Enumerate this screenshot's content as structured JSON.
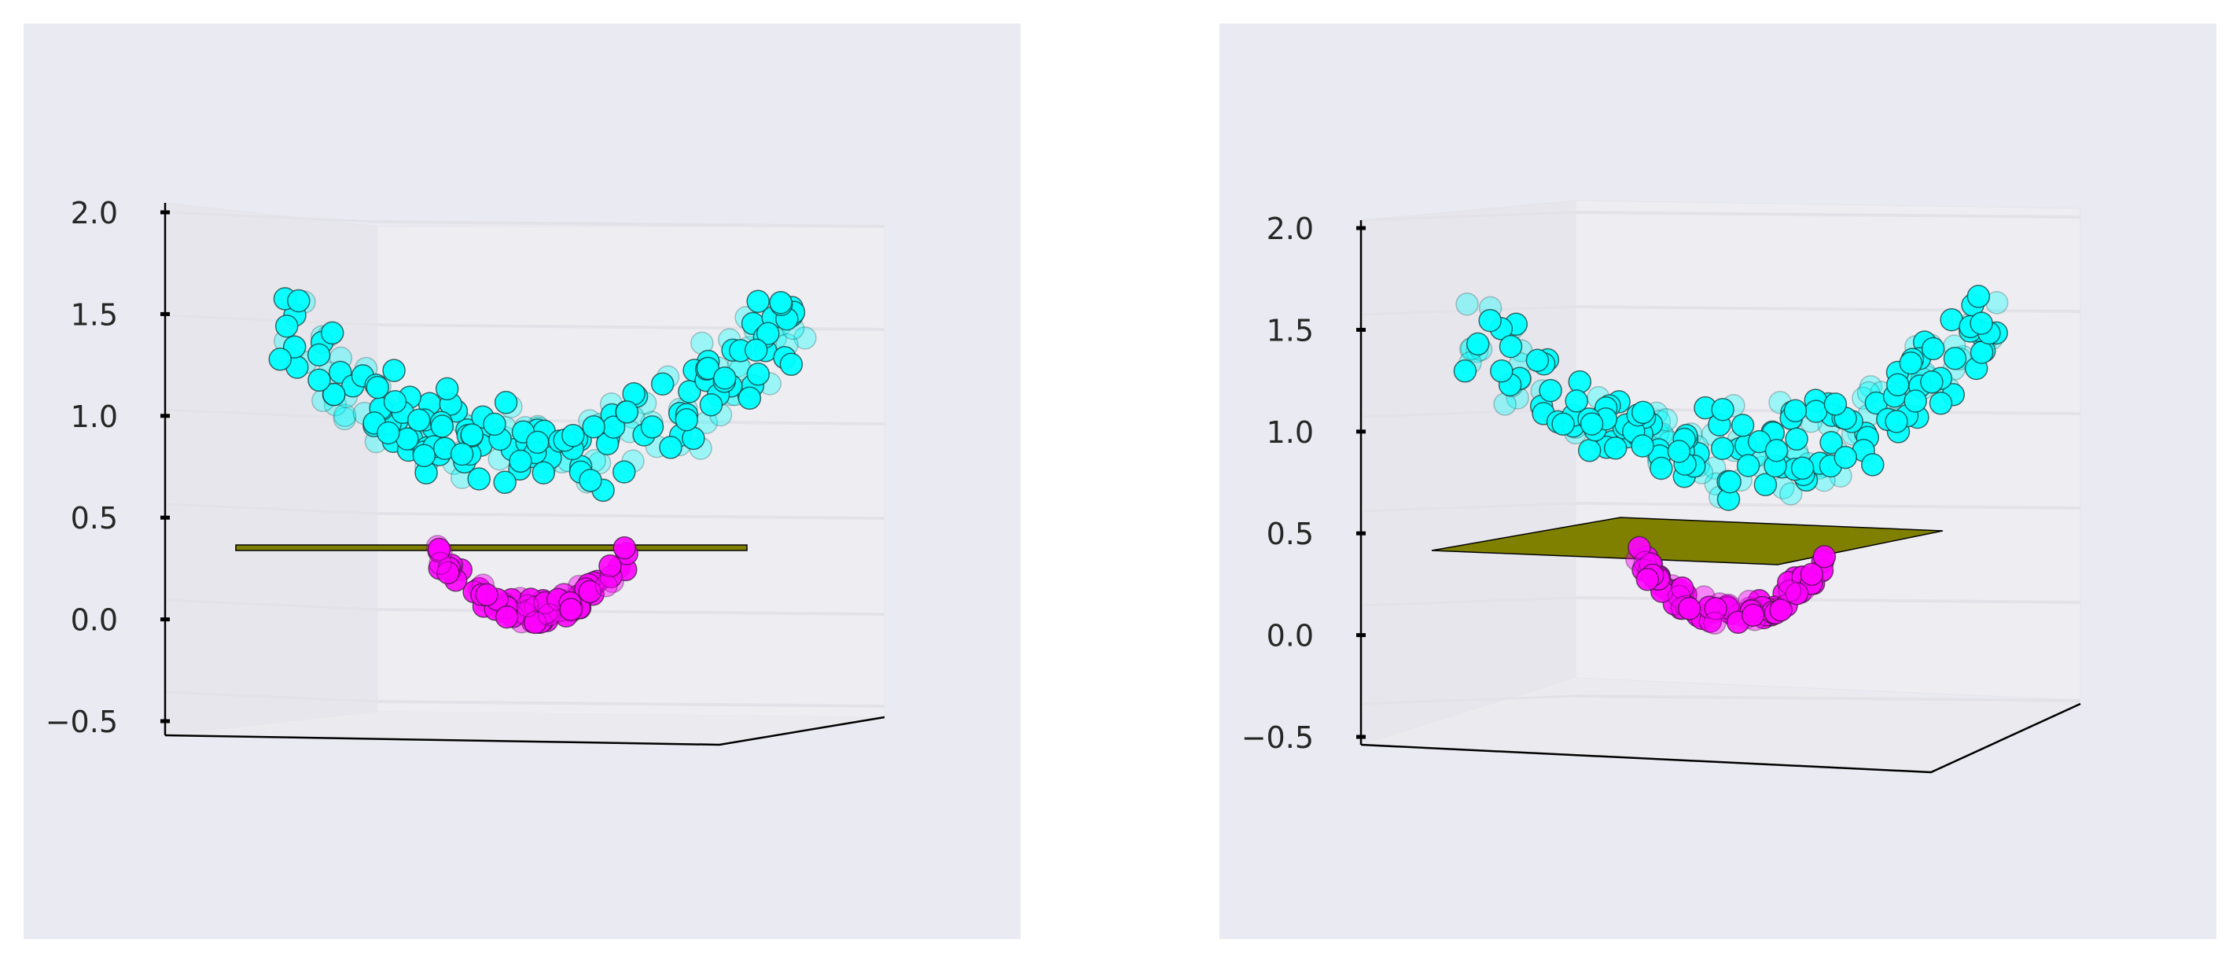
{
  "chart_data": [
    {
      "type": "scatter",
      "dimensions": 3,
      "title": "",
      "xlabel": "",
      "ylabel": "",
      "zlabel": "",
      "zlim": [
        -0.5,
        2.0
      ],
      "zticks": [
        "−0.5",
        "0.0",
        "0.5",
        "1.0",
        "1.5",
        "2.0"
      ],
      "grid": true,
      "legend": "none",
      "series": [
        {
          "color": "#00ffff",
          "shape": "upward bowl",
          "z_range": [
            0.65,
            1.65
          ]
        },
        {
          "color": "#ff00ff",
          "shape": "small bowl",
          "z_range": [
            0.05,
            0.3
          ]
        }
      ],
      "separating_plane": {
        "z": 0.4,
        "color": "#808000"
      }
    },
    {
      "type": "scatter",
      "dimensions": 3,
      "title": "",
      "xlabel": "",
      "ylabel": "",
      "zlabel": "",
      "zlim": [
        -0.5,
        2.0
      ],
      "zticks": [
        "−0.5",
        "0.0",
        "0.5",
        "1.0",
        "1.5",
        "2.0"
      ],
      "grid": true,
      "legend": "none",
      "series": [
        {
          "color": "#00ffff",
          "shape": "upward bowl",
          "z_range": [
            0.7,
            1.7
          ]
        },
        {
          "color": "#ff00ff",
          "shape": "small bowl",
          "z_range": [
            0.05,
            0.3
          ]
        }
      ],
      "separating_plane": {
        "z": 0.45,
        "color": "#808000"
      }
    }
  ]
}
